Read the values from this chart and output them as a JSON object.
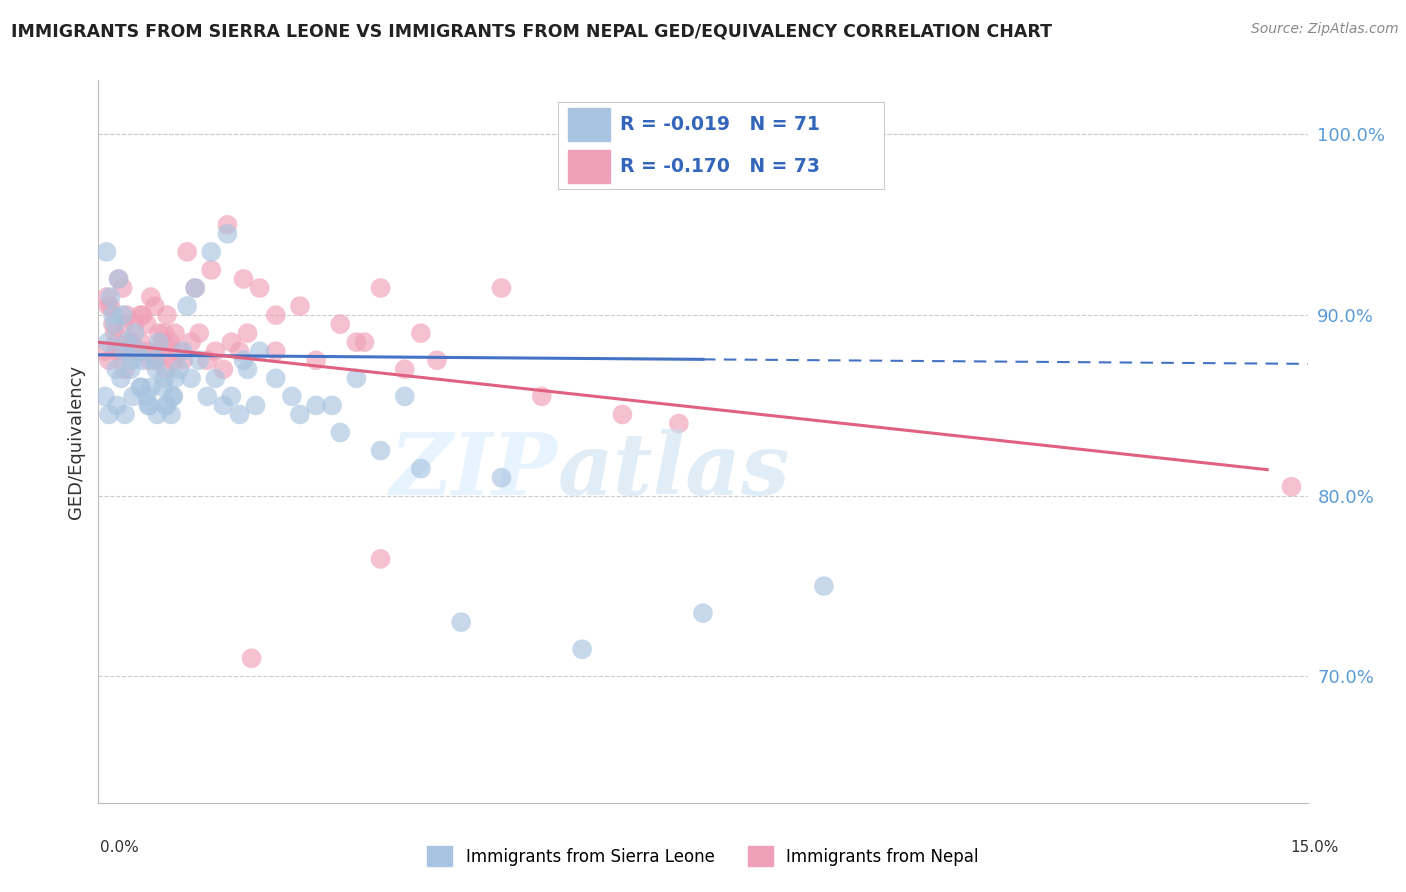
{
  "title": "IMMIGRANTS FROM SIERRA LEONE VS IMMIGRANTS FROM NEPAL GED/EQUIVALENCY CORRELATION CHART",
  "source": "Source: ZipAtlas.com",
  "ylabel": "GED/Equivalency",
  "xmin": 0.0,
  "xmax": 15.0,
  "ymin": 63.0,
  "ymax": 103.0,
  "yticks": [
    70.0,
    80.0,
    90.0,
    100.0
  ],
  "ytick_labels": [
    "70.0%",
    "80.0%",
    "90.0%",
    "100.0%"
  ],
  "blue_R": -0.019,
  "blue_N": 71,
  "pink_R": -0.17,
  "pink_N": 73,
  "blue_color": "#a8c4e0",
  "pink_color": "#f0a0b8",
  "blue_line_color": "#4472c4",
  "pink_line_color": "#e06080",
  "bottom_legend_blue": "Immigrants from Sierra Leone",
  "bottom_legend_pink": "Immigrants from Nepal",
  "blue_line_y0": 87.8,
  "blue_line_y15": 87.3,
  "pink_line_y0": 88.5,
  "pink_line_y15": 81.2,
  "blue_x": [
    0.1,
    0.15,
    0.2,
    0.25,
    0.3,
    0.35,
    0.4,
    0.45,
    0.5,
    0.55,
    0.6,
    0.65,
    0.7,
    0.75,
    0.8,
    0.85,
    0.9,
    0.95,
    1.0,
    1.1,
    1.2,
    1.4,
    1.6,
    1.8,
    2.0,
    2.5,
    3.0,
    3.5,
    4.0,
    5.0,
    0.12,
    0.18,
    0.22,
    0.28,
    0.32,
    0.42,
    0.52,
    0.62,
    0.72,
    0.82,
    0.92,
    1.05,
    1.25,
    1.45,
    1.65,
    1.85,
    2.2,
    2.7,
    3.2,
    3.8,
    0.08,
    0.13,
    0.23,
    0.33,
    0.43,
    0.53,
    0.63,
    0.73,
    0.83,
    0.93,
    1.15,
    1.35,
    1.55,
    1.75,
    1.95,
    2.4,
    2.9,
    4.5,
    6.0,
    7.5,
    9.0
  ],
  "blue_y": [
    93.5,
    91.0,
    89.5,
    92.0,
    90.0,
    88.5,
    87.0,
    89.0,
    88.0,
    87.5,
    85.5,
    86.0,
    87.5,
    88.5,
    86.0,
    85.0,
    84.5,
    86.5,
    87.0,
    90.5,
    91.5,
    93.5,
    94.5,
    87.5,
    88.0,
    84.5,
    83.5,
    82.5,
    81.5,
    81.0,
    88.5,
    90.0,
    87.0,
    86.5,
    88.0,
    87.5,
    86.0,
    85.0,
    87.0,
    86.5,
    85.5,
    88.0,
    87.5,
    86.5,
    85.5,
    87.0,
    86.5,
    85.0,
    86.5,
    85.5,
    85.5,
    84.5,
    85.0,
    84.5,
    85.5,
    86.0,
    85.0,
    84.5,
    85.0,
    85.5,
    86.5,
    85.5,
    85.0,
    84.5,
    85.0,
    85.5,
    85.0,
    73.0,
    71.5,
    73.5,
    75.0
  ],
  "pink_x": [
    0.1,
    0.15,
    0.2,
    0.25,
    0.3,
    0.35,
    0.4,
    0.45,
    0.5,
    0.55,
    0.6,
    0.65,
    0.7,
    0.75,
    0.8,
    0.85,
    0.9,
    0.95,
    1.0,
    1.1,
    1.2,
    1.4,
    1.6,
    1.8,
    2.0,
    2.5,
    3.0,
    3.5,
    4.0,
    5.0,
    0.12,
    0.18,
    0.22,
    0.28,
    0.32,
    0.42,
    0.52,
    0.62,
    0.72,
    0.82,
    0.92,
    1.05,
    1.25,
    1.45,
    1.65,
    1.85,
    2.2,
    2.7,
    3.2,
    3.8,
    0.08,
    0.13,
    0.23,
    0.33,
    0.43,
    0.53,
    0.63,
    0.73,
    0.83,
    0.93,
    1.15,
    1.35,
    1.55,
    1.75,
    3.3,
    4.2,
    5.5,
    6.5,
    14.8,
    2.2,
    7.2,
    3.5,
    1.9
  ],
  "pink_y": [
    91.0,
    90.5,
    89.0,
    92.0,
    91.5,
    90.0,
    88.5,
    89.5,
    88.0,
    90.0,
    89.5,
    91.0,
    90.5,
    89.0,
    88.5,
    90.0,
    88.5,
    89.0,
    88.0,
    93.5,
    91.5,
    92.5,
    95.0,
    92.0,
    91.5,
    90.5,
    89.5,
    91.5,
    89.0,
    91.5,
    90.5,
    89.5,
    88.5,
    88.0,
    89.5,
    88.5,
    90.0,
    88.0,
    87.5,
    89.0,
    88.0,
    87.5,
    89.0,
    88.0,
    88.5,
    89.0,
    88.0,
    87.5,
    88.5,
    87.0,
    88.0,
    87.5,
    88.0,
    87.0,
    88.0,
    88.5,
    87.5,
    88.0,
    87.0,
    87.5,
    88.5,
    87.5,
    87.0,
    88.0,
    88.5,
    87.5,
    85.5,
    84.5,
    80.5,
    90.0,
    84.0,
    76.5,
    71.0
  ]
}
